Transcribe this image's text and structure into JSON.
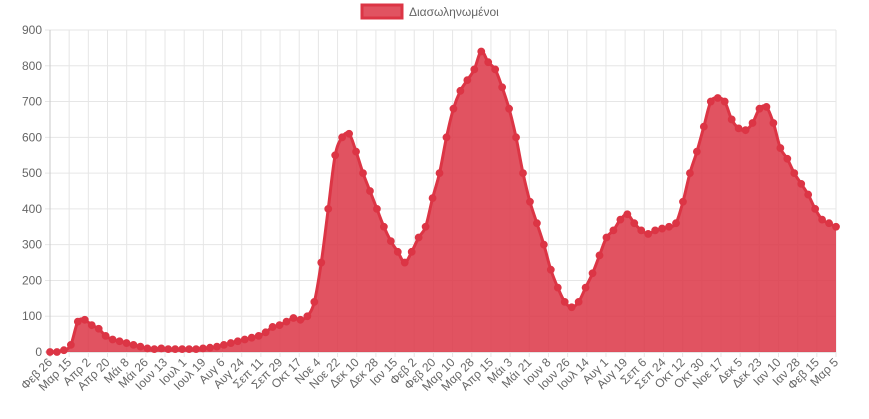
{
  "chart_data": {
    "type": "area",
    "legend_position": "top-center",
    "grid": true,
    "ylim": [
      0,
      900
    ],
    "y_ticks": [
      0,
      100,
      200,
      300,
      400,
      500,
      600,
      700,
      800,
      900
    ],
    "x_tick_labels": [
      "Φεβ 26",
      "Μαρ 15",
      "Απρ 2",
      "Απρ 20",
      "Μάι 8",
      "Μάι 26",
      "Ιουν 13",
      "Ιουλ 1",
      "Ιουλ 19",
      "Αυγ 6",
      "Αυγ 24",
      "Σεπ 11",
      "Σεπ 29",
      "Οκτ 17",
      "Νοε 4",
      "Νοε 22",
      "Δεκ 10",
      "Δεκ 28",
      "Ιαν 15",
      "Φεβ 2",
      "Φεβ 20",
      "Μαρ 10",
      "Μαρ 28",
      "Απρ 15",
      "Μάι 3",
      "Μάι 21",
      "Ιουν 8",
      "Ιουν 26",
      "Ιουλ 14",
      "Αυγ 1",
      "Αυγ 19",
      "Σεπ 6",
      "Σεπ 24",
      "Οκτ 12",
      "Οκτ 30",
      "Νοε 17",
      "Δεκ 5",
      "Δεκ 23",
      "Ιαν 10",
      "Ιαν 28",
      "Φεβ 15",
      "Μαρ 5"
    ],
    "series": [
      {
        "name": "Διασωληνωμένοι",
        "color": "#dc3545",
        "values": [
          0,
          0,
          5,
          20,
          85,
          90,
          75,
          65,
          45,
          35,
          30,
          25,
          20,
          15,
          10,
          8,
          10,
          8,
          8,
          8,
          8,
          8,
          10,
          12,
          15,
          20,
          25,
          30,
          35,
          40,
          45,
          55,
          70,
          75,
          85,
          95,
          90,
          100,
          140,
          250,
          400,
          550,
          600,
          610,
          560,
          500,
          450,
          400,
          350,
          310,
          280,
          250,
          280,
          320,
          350,
          430,
          500,
          600,
          680,
          730,
          760,
          790,
          840,
          810,
          790,
          740,
          680,
          600,
          500,
          420,
          360,
          300,
          230,
          180,
          140,
          125,
          140,
          180,
          220,
          270,
          320,
          340,
          370,
          385,
          360,
          340,
          330,
          340,
          345,
          350,
          360,
          420,
          500,
          560,
          630,
          700,
          710,
          700,
          650,
          625,
          620,
          640,
          680,
          685,
          640,
          570,
          540,
          500,
          470,
          440,
          400,
          370,
          360,
          350
        ]
      }
    ]
  }
}
